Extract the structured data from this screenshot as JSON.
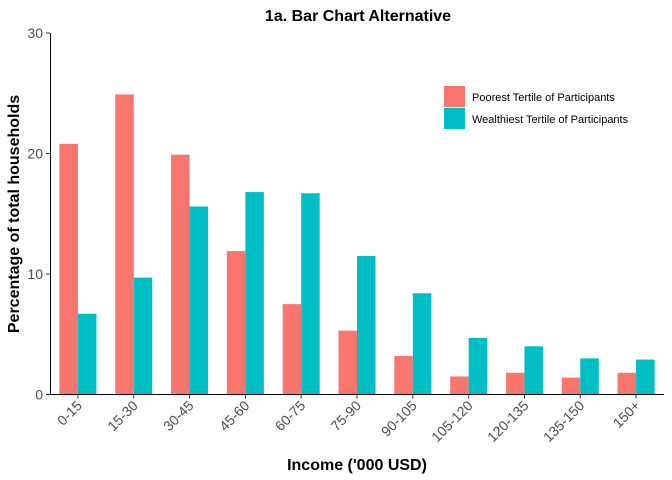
{
  "chart_data": {
    "type": "bar",
    "title": "1a. Bar Chart Alternative",
    "xlabel": "Income ('000 USD)",
    "ylabel": "Percentage of total households",
    "ylim": [
      0,
      30
    ],
    "yticks": [
      0,
      10,
      20,
      30
    ],
    "grid": false,
    "legend_position": "top-right",
    "categories": [
      "0-15",
      "15-30",
      "30-45",
      "45-60",
      "60-75",
      "75-90",
      "90-105",
      "105-120",
      "120-135",
      "135-150",
      "150+"
    ],
    "series": [
      {
        "name": "Poorest Tertile of Participants",
        "color": "#F8766D",
        "values": [
          20.8,
          24.9,
          19.9,
          11.9,
          7.5,
          5.3,
          3.2,
          1.5,
          1.8,
          1.4,
          1.8
        ]
      },
      {
        "name": "Wealthiest Tertile of Participants",
        "color": "#00BFC4",
        "values": [
          6.7,
          9.7,
          15.6,
          16.8,
          16.7,
          11.5,
          8.4,
          4.7,
          4.0,
          3.0,
          2.9
        ]
      }
    ]
  }
}
